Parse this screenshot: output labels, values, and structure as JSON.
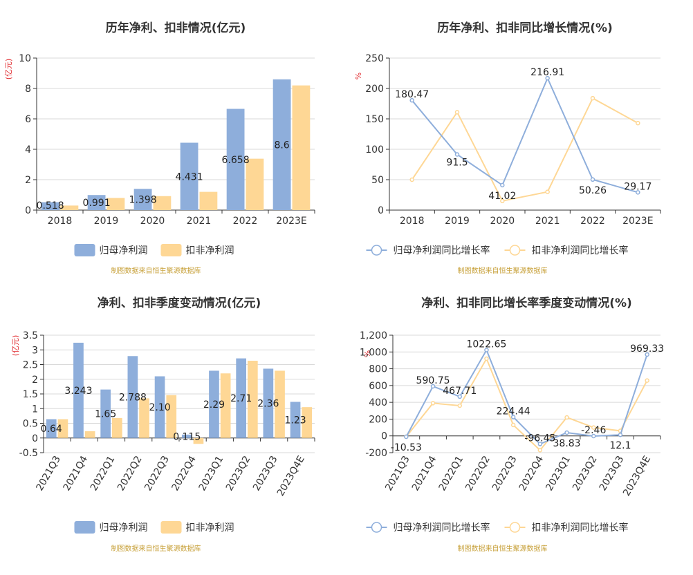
{
  "colors": {
    "blue": "#8eaedb",
    "orange": "#fed795",
    "lineBlue": "#8eaedb",
    "lineOrange": "#fed795",
    "red": "#e0262a",
    "axis": "#333333",
    "grid": "#d9d9d9",
    "source": "#c8a23c"
  },
  "chart_data": [
    {
      "type": "bar",
      "title": "历年净利、扣非情况(亿元)",
      "unit": "(亿元)",
      "categories": [
        "2018",
        "2019",
        "2020",
        "2021",
        "2022",
        "2023E"
      ],
      "yticks": [
        "0",
        "2",
        "4",
        "6",
        "8",
        "10"
      ],
      "ylim": [
        0,
        10
      ],
      "series": [
        {
          "name": "归母净利润",
          "values": [
            0.518,
            0.991,
            1.398,
            4.431,
            6.658,
            8.6
          ],
          "labels": [
            "0.518",
            "0.991",
            "1.398",
            "4.431",
            "6.658",
            "8.6"
          ]
        },
        {
          "name": "扣非净利润",
          "values": [
            0.3,
            0.8,
            0.92,
            1.2,
            3.38,
            8.2
          ]
        }
      ],
      "source": "制图数据来自恒生聚源数据库"
    },
    {
      "type": "line",
      "title": "历年净利、扣非同比增长情况(%)",
      "unit": "%",
      "categories": [
        "2018",
        "2019",
        "2020",
        "2021",
        "2022",
        "2023E"
      ],
      "yticks": [
        "0",
        "50",
        "100",
        "150",
        "200",
        "250"
      ],
      "ylim": [
        0,
        250
      ],
      "series": [
        {
          "name": "归母净利润同比增长率",
          "values": [
            180.47,
            91.5,
            41.02,
            216.91,
            50.26,
            29.17
          ],
          "labels": [
            "180.47",
            "91.5",
            "41.02",
            "216.91",
            "50.26",
            "29.17"
          ]
        },
        {
          "name": "扣非净利润同比增长率",
          "values": [
            50,
            161,
            15,
            30,
            184,
            143
          ]
        }
      ],
      "source": "制图数据来自恒生聚源数据库"
    },
    {
      "type": "bar",
      "title": "净利、扣非季度变动情况(亿元)",
      "unit": "(亿元)",
      "categories": [
        "2021Q3",
        "2021Q4",
        "2022Q1",
        "2022Q2",
        "2022Q3",
        "2022Q4",
        "2023Q1",
        "2023Q2",
        "2023Q3",
        "2023Q4E"
      ],
      "yticks": [
        "-0.5",
        "0",
        "0.5",
        "1",
        "1.5",
        "2",
        "2.5",
        "3",
        "3.5"
      ],
      "ylim": [
        -0.5,
        3.5
      ],
      "series": [
        {
          "name": "归母净利润",
          "values": [
            0.64,
            3.243,
            1.65,
            2.788,
            2.1,
            0.115,
            2.29,
            2.71,
            2.36,
            1.23
          ],
          "labels": [
            "0.64",
            "3.243",
            "1.65",
            "2.788",
            "2.10",
            "0.115",
            "2.29",
            "2.71",
            "2.36",
            "1.23"
          ]
        },
        {
          "name": "扣非净利润",
          "values": [
            0.64,
            0.23,
            0.68,
            1.35,
            1.46,
            -0.2,
            2.2,
            2.63,
            2.29,
            1.05
          ]
        }
      ],
      "source": "制图数据来自恒生聚源数据库"
    },
    {
      "type": "line",
      "title": "净利、扣非同比增长率季度变动情况(%)",
      "unit": "%",
      "categories": [
        "2021Q3",
        "2021Q4",
        "2022Q1",
        "2022Q2",
        "2022Q3",
        "2022Q4",
        "2023Q1",
        "2023Q2",
        "2023Q3",
        "2023Q4E"
      ],
      "yticks": [
        "-200",
        "0",
        "200",
        "400",
        "600",
        "800",
        "1,000",
        "1,200"
      ],
      "ylim": [
        -200,
        1200
      ],
      "series": [
        {
          "name": "归母净利润同比增长率",
          "values": [
            -10.53,
            590.75,
            467.71,
            1022.65,
            224.44,
            -96.45,
            38.83,
            -2.46,
            12.1,
            969.33
          ],
          "labels": [
            "-10.53",
            "590.75",
            "467.71",
            "1022.65",
            "224.44",
            "-96.45",
            "38.83",
            "-2.46",
            "12.1",
            "969.33"
          ]
        },
        {
          "name": "扣非净利润同比增长率",
          "values": [
            -10,
            390,
            360,
            920,
            130,
            -170,
            220,
            100,
            60,
            660
          ]
        }
      ],
      "source": "制图数据来自恒生聚源数据库"
    }
  ]
}
